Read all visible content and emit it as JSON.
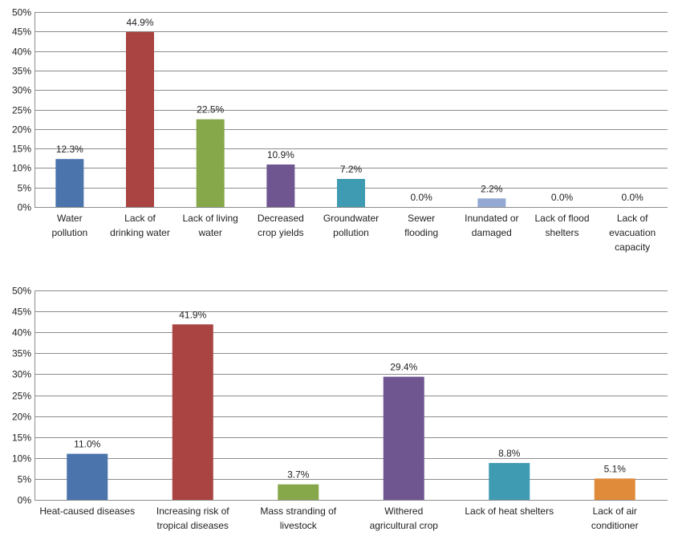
{
  "chart_data": [
    {
      "type": "bar",
      "title": "",
      "xlabel": "",
      "ylabel": "",
      "ylim": [
        0,
        50
      ],
      "y_tick_step": 5,
      "y_tick_format": "percent",
      "grid": true,
      "legend": "none",
      "categories": [
        "Water pollution",
        "Lack of drinking water",
        "Lack of living water",
        "Decreased crop yields",
        "Groundwater pollution",
        "Sewer flooding",
        "Inundated or damaged",
        "Lack of flood shelters",
        "Lack of evacuation capacity"
      ],
      "category_lines": [
        [
          "Water",
          "pollution"
        ],
        [
          "Lack of",
          "drinking water"
        ],
        [
          "Lack of living",
          "water"
        ],
        [
          "Decreased",
          "crop yields"
        ],
        [
          "Groundwater",
          "pollution"
        ],
        [
          "Sewer",
          "flooding"
        ],
        [
          "Inundated or",
          "damaged"
        ],
        [
          "Lack of flood",
          "shelters"
        ],
        [
          "Lack of",
          "evacuation",
          "capacity"
        ]
      ],
      "values": [
        12.3,
        44.9,
        22.5,
        10.9,
        7.2,
        0.0,
        2.2,
        0.0,
        0.0
      ],
      "data_labels": [
        "12.3%",
        "44.9%",
        "22.5%",
        "10.9%",
        "7.2%",
        "0.0%",
        "2.2%",
        "0.0%",
        "0.0%"
      ],
      "colors": [
        "#4a74ab",
        "#a94442",
        "#86a84a",
        "#6f5691",
        "#3f9bb1",
        "#e08b3a",
        "#93a9d4",
        "#cccccc",
        "#cccccc"
      ]
    },
    {
      "type": "bar",
      "title": "",
      "xlabel": "",
      "ylabel": "",
      "ylim": [
        0,
        50
      ],
      "y_tick_step": 5,
      "y_tick_format": "percent",
      "grid": true,
      "legend": "none",
      "categories": [
        "Heat-caused diseases",
        "Increasing risk of tropical diseases",
        "Mass stranding of livestock",
        "Withered agricultural crop",
        "Lack of heat shelters",
        "Lack of air conditioner"
      ],
      "category_lines": [
        [
          "Heat-caused diseases"
        ],
        [
          "Increasing risk of",
          "tropical diseases"
        ],
        [
          "Mass stranding of",
          "livestock"
        ],
        [
          "Withered",
          "agricultural crop"
        ],
        [
          "Lack of heat shelters"
        ],
        [
          "Lack of air",
          "conditioner"
        ]
      ],
      "values": [
        11.0,
        41.9,
        3.7,
        29.4,
        8.8,
        5.1
      ],
      "data_labels": [
        "11.0%",
        "41.9%",
        "3.7%",
        "29.4%",
        "8.8%",
        "5.1%"
      ],
      "colors": [
        "#4a74ab",
        "#a94442",
        "#86a84a",
        "#6f5691",
        "#3f9bb1",
        "#e08b3a"
      ]
    }
  ]
}
